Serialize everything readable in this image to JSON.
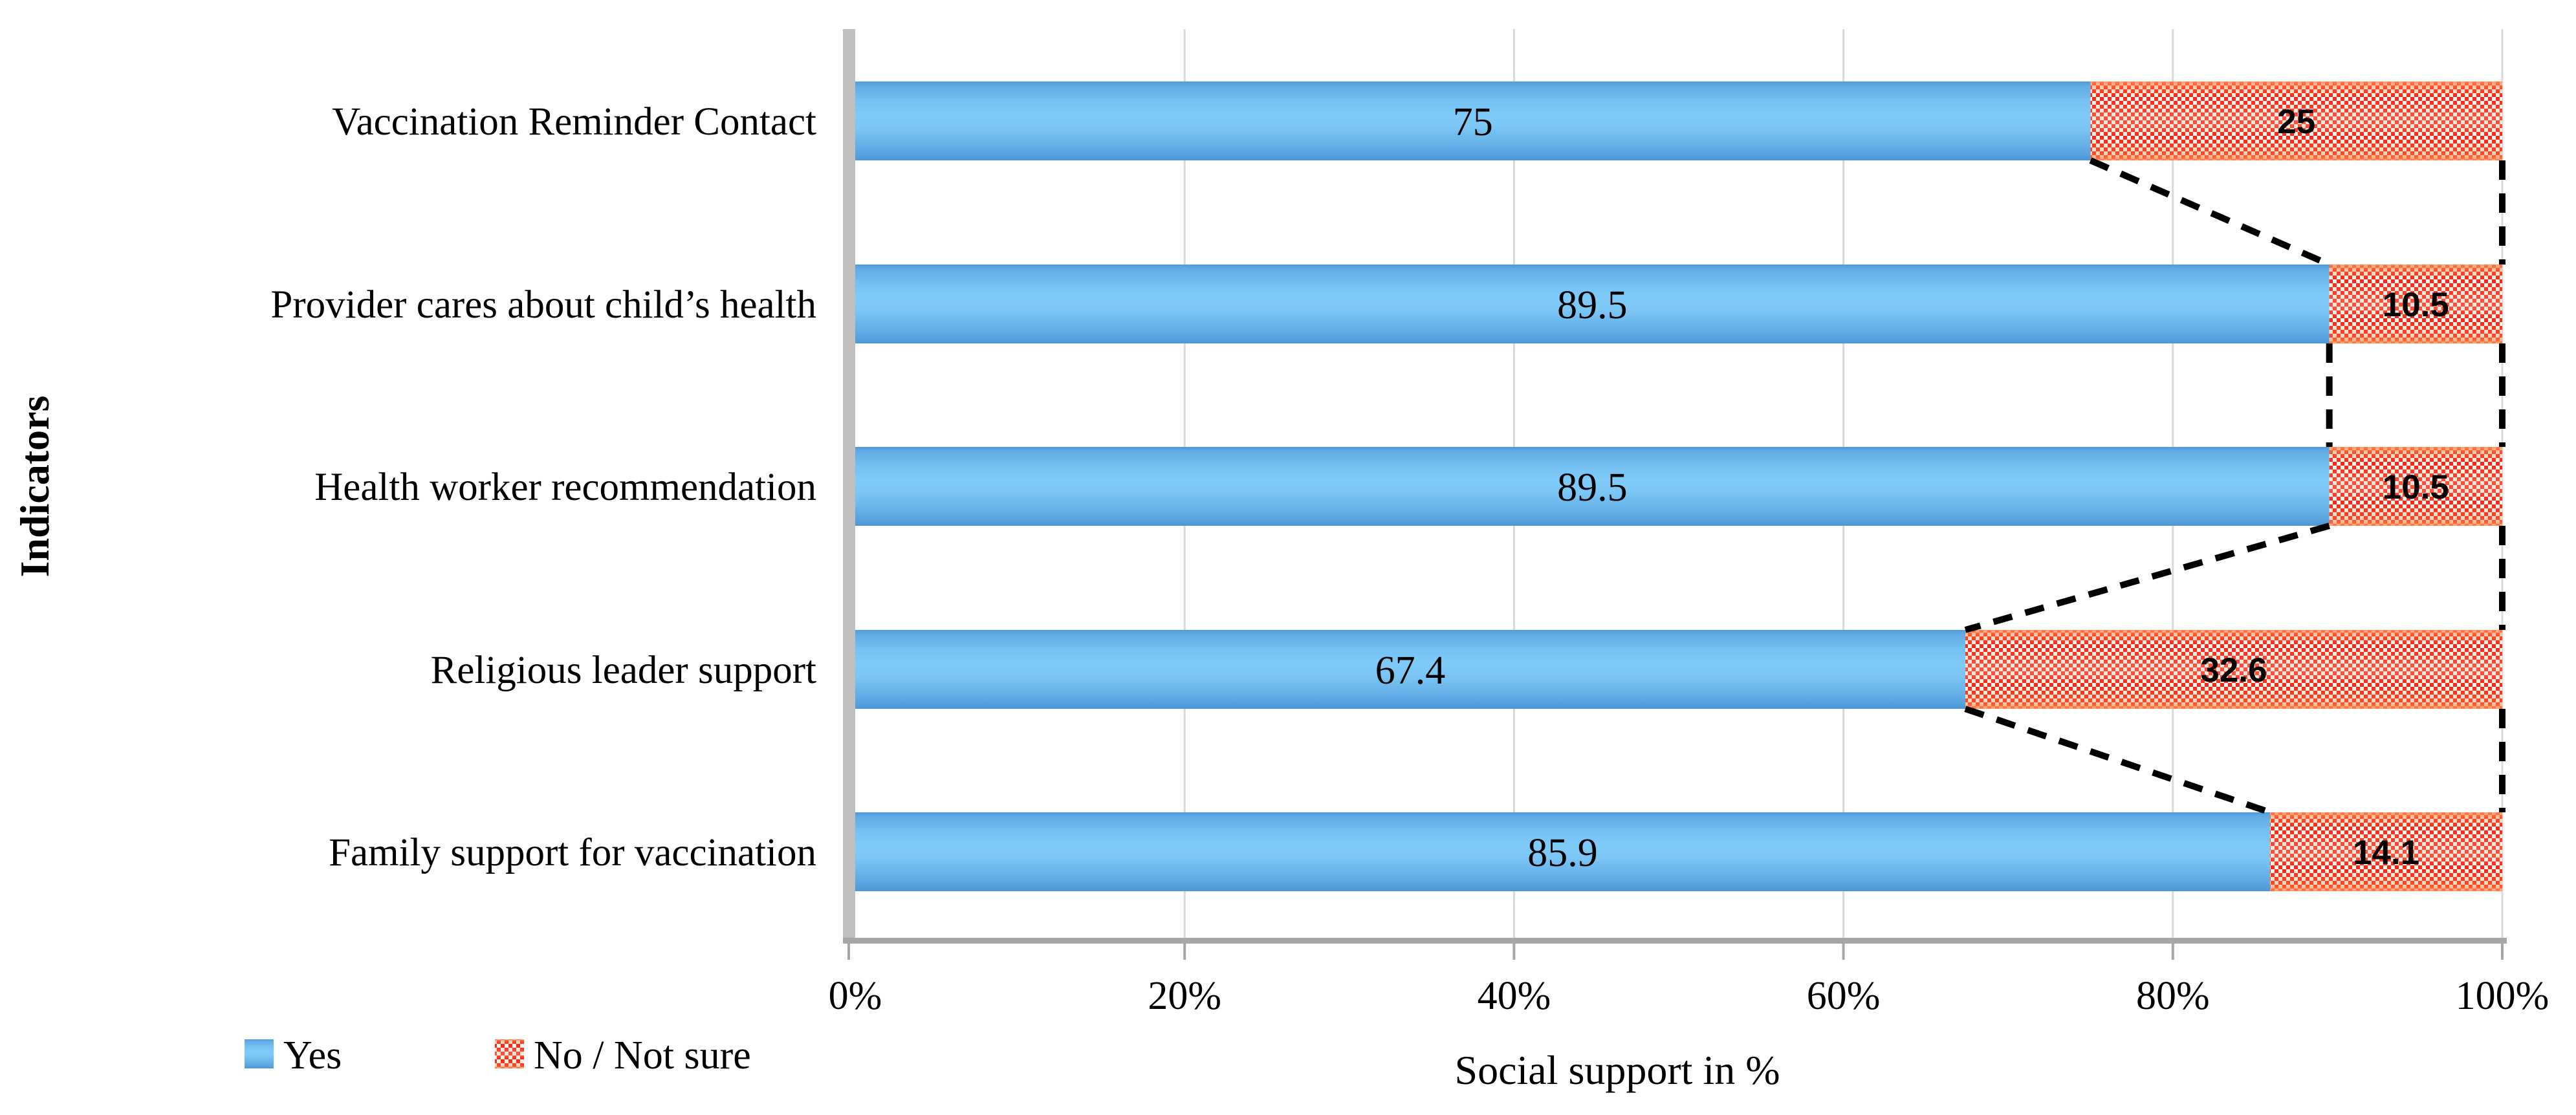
{
  "chart_data": {
    "type": "bar",
    "orientation": "horizontal",
    "stacked": true,
    "title": "",
    "xlabel": "Social support in %",
    "ylabel": "Indicators",
    "xlim": [
      0,
      100
    ],
    "grid": true,
    "series_lines": true,
    "legend_position": "bottom-left",
    "x_ticks": [
      {
        "value": 0,
        "label": "0%"
      },
      {
        "value": 20,
        "label": "20%"
      },
      {
        "value": 40,
        "label": "40%"
      },
      {
        "value": 60,
        "label": "60%"
      },
      {
        "value": 80,
        "label": "80%"
      },
      {
        "value": 100,
        "label": "100%"
      }
    ],
    "categories": [
      "Vaccination Reminder Contact",
      "Provider cares about child’s health",
      "Health worker recommendation",
      "Religious leader support",
      "Family support for vaccination"
    ],
    "series": [
      {
        "name": "Yes",
        "values": [
          75,
          89.5,
          89.5,
          67.4,
          85.9
        ],
        "data_labels": [
          "75",
          "89.5",
          "89.5",
          "67.4",
          "85.9"
        ],
        "color": "#5FA8E0",
        "fill_style": "gradient"
      },
      {
        "name": "No / Not sure",
        "values": [
          25,
          10.5,
          10.5,
          32.6,
          14.1
        ],
        "data_labels": [
          "25",
          "10.5",
          "10.5",
          "32.6",
          "14.1"
        ],
        "color": "#FB2B16",
        "fill_style": "checker-pattern"
      }
    ]
  },
  "colors": {
    "gridline": "#D9D9D9",
    "axis": "#A6A6A6",
    "axis_band": "#BFBFBF",
    "series_line": "#000000",
    "background": "#FFFFFF"
  }
}
